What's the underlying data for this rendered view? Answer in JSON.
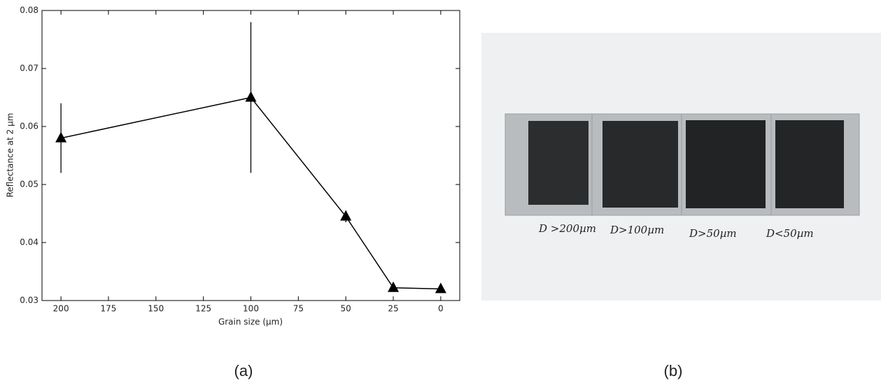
{
  "chart_data": {
    "type": "line",
    "caption": "(a)",
    "xlabel": "Grain size (µm)",
    "ylabel": "Reflectance at 2 µm",
    "x": [
      200,
      100,
      50,
      25,
      0
    ],
    "values": [
      0.058,
      0.065,
      0.0445,
      0.0322,
      0.032
    ],
    "errors": [
      0.006,
      0.013,
      0.001,
      0,
      0
    ],
    "color": "#000000",
    "xlim": [
      210,
      -10
    ],
    "xticks": [
      200,
      175,
      150,
      125,
      100,
      75,
      50,
      25,
      0
    ],
    "ylim": [
      0.03,
      0.08
    ],
    "yticks": [
      0.03,
      0.04,
      0.05,
      0.06,
      0.07,
      0.08
    ]
  },
  "photo": {
    "caption": "(b)",
    "labels": [
      "D >200µm",
      "D>100µm",
      "D>50µm",
      "D<50µm"
    ]
  }
}
